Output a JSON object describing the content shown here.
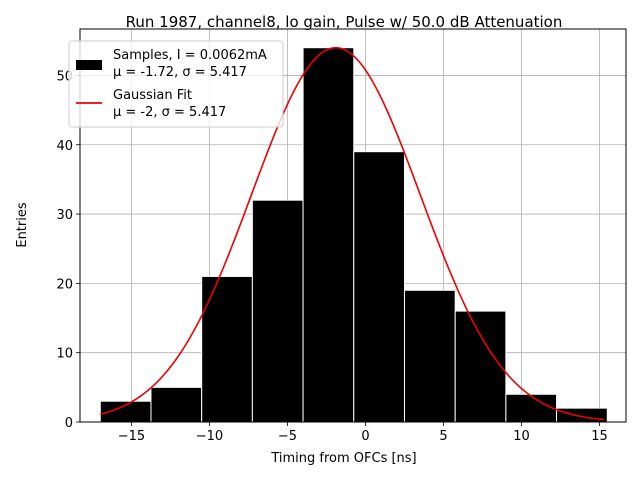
{
  "chart_data": {
    "type": "bar",
    "title": "Run 1987, channel8, lo gain, Pulse w/ 50.0 dB Attenuation",
    "xlabel": "Timing from OFCs [ns]",
    "ylabel": "Entries",
    "xlim": [
      -18.3,
      16.7
    ],
    "ylim": [
      0,
      56.7
    ],
    "grid": true,
    "legend_position": "upper-left",
    "xticks": [
      -15,
      -10,
      -5,
      0,
      5,
      10,
      15
    ],
    "xtick_labels": [
      "−15",
      "−10",
      "−5",
      "0",
      "5",
      "10",
      "15"
    ],
    "yticks": [
      0,
      10,
      20,
      30,
      40,
      50
    ],
    "ytick_labels": [
      "0",
      "10",
      "20",
      "30",
      "40",
      "50"
    ],
    "histogram": {
      "name": "Samples, I = 0.0062mA",
      "stats_label": "μ = -1.72, σ = 5.417",
      "color": "#000000",
      "edge_color": "#ffffff",
      "bin_edges": [
        -17.0,
        -13.75,
        -10.5,
        -7.25,
        -4.0,
        -0.75,
        2.5,
        5.75,
        9.0,
        12.25,
        15.5
      ],
      "counts": [
        3,
        5,
        21,
        32,
        54,
        39,
        19,
        16,
        4,
        2
      ]
    },
    "fit": {
      "name": "Gaussian Fit",
      "stats_label": "μ = -2, σ = 5.417",
      "color": "#ee0000",
      "mu": -1.9,
      "sigma": 5.417,
      "amplitude": 54,
      "x_range": [
        -17,
        15.3
      ]
    }
  }
}
